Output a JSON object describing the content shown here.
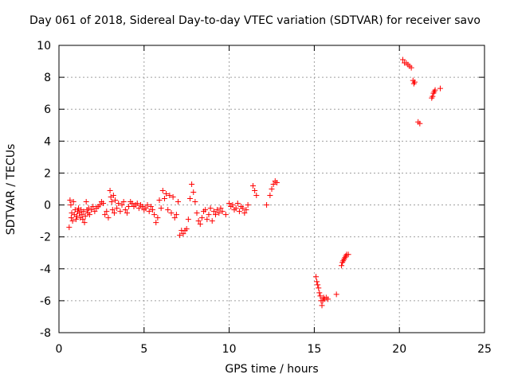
{
  "chart_data": {
    "type": "scatter",
    "title": "Day 061 of 2018, Sidereal Day-to-day VTEC variation (SDTVAR) for receiver savo",
    "xlabel": "GPS time / hours",
    "ylabel": "SDTVAR / TECUs",
    "xlim": [
      0,
      25
    ],
    "ylim": [
      -8,
      10
    ],
    "xticks": [
      0,
      5,
      10,
      15,
      20,
      25
    ],
    "yticks": [
      -8,
      -6,
      -4,
      -2,
      0,
      2,
      4,
      6,
      8,
      10
    ],
    "grid": true,
    "marker": "+",
    "marker_color": "#ff0000",
    "series": [
      {
        "name": "SDTVAR",
        "x": [
          0.6,
          0.65,
          0.7,
          0.72,
          0.75,
          0.8,
          0.85,
          0.9,
          0.95,
          1.0,
          1.05,
          1.1,
          1.15,
          1.2,
          1.25,
          1.3,
          1.35,
          1.4,
          1.45,
          1.5,
          1.55,
          1.6,
          1.65,
          1.7,
          1.75,
          1.8,
          1.9,
          2.0,
          2.1,
          2.2,
          2.3,
          2.4,
          2.5,
          2.6,
          2.7,
          2.8,
          2.9,
          3.0,
          3.05,
          3.1,
          3.15,
          3.2,
          3.25,
          3.3,
          3.4,
          3.5,
          3.6,
          3.7,
          3.8,
          3.9,
          4.0,
          4.1,
          4.2,
          4.3,
          4.4,
          4.5,
          4.6,
          4.7,
          4.8,
          4.9,
          5.0,
          5.1,
          5.2,
          5.3,
          5.4,
          5.5,
          5.6,
          5.7,
          5.8,
          5.9,
          6.0,
          6.1,
          6.2,
          6.3,
          6.4,
          6.5,
          6.6,
          6.7,
          6.8,
          6.9,
          7.0,
          7.1,
          7.2,
          7.3,
          7.4,
          7.5,
          7.6,
          7.7,
          7.8,
          7.9,
          8.0,
          8.1,
          8.2,
          8.3,
          8.4,
          8.5,
          8.6,
          8.7,
          8.8,
          8.9,
          9.0,
          9.1,
          9.2,
          9.3,
          9.4,
          9.5,
          9.6,
          9.8,
          10.0,
          10.1,
          10.2,
          10.3,
          10.4,
          10.5,
          10.6,
          10.7,
          10.8,
          10.9,
          11.0,
          11.1,
          11.4,
          11.5,
          11.6,
          12.2,
          12.4,
          12.5,
          12.6,
          12.7,
          12.8,
          15.1,
          15.15,
          15.2,
          15.25,
          15.3,
          15.35,
          15.4,
          15.45,
          15.5,
          15.55,
          15.6,
          15.7,
          15.8,
          16.3,
          16.6,
          16.65,
          16.7,
          16.75,
          16.8,
          16.85,
          16.9,
          17.0,
          20.2,
          20.3,
          20.4,
          20.5,
          20.6,
          20.7,
          20.8,
          20.85,
          20.9,
          21.1,
          21.2,
          21.9,
          21.95,
          22.0,
          22.05,
          22.1,
          22.4
        ],
        "y": [
          -1.4,
          0.3,
          0.0,
          -0.8,
          -0.5,
          -1.0,
          0.2,
          -0.6,
          -0.3,
          -0.9,
          -0.7,
          -0.4,
          -0.2,
          -0.5,
          -0.8,
          -0.3,
          -0.6,
          -0.9,
          -0.4,
          -1.1,
          -0.7,
          0.2,
          -0.3,
          -0.5,
          -0.2,
          -0.6,
          -0.3,
          -0.1,
          -0.4,
          -0.2,
          -0.1,
          0.0,
          0.2,
          0.1,
          -0.6,
          -0.4,
          -0.8,
          0.9,
          0.5,
          0.2,
          -0.3,
          0.6,
          -0.5,
          0.3,
          -0.2,
          0.1,
          -0.4,
          0.0,
          0.2,
          -0.3,
          -0.5,
          -0.1,
          0.2,
          0.1,
          -0.1,
          0.0,
          0.1,
          -0.2,
          0.0,
          -0.1,
          -0.3,
          -0.2,
          0.0,
          -0.4,
          -0.1,
          -0.3,
          -0.6,
          -1.1,
          -0.8,
          0.3,
          -0.2,
          0.9,
          0.4,
          0.7,
          -0.3,
          0.6,
          -0.5,
          0.5,
          -0.8,
          -0.6,
          0.2,
          -1.9,
          -1.6,
          -1.8,
          -1.6,
          -1.5,
          -0.9,
          0.4,
          1.3,
          0.8,
          0.2,
          -0.5,
          -1.0,
          -1.2,
          -0.8,
          -0.4,
          -0.3,
          -0.9,
          -0.6,
          -0.2,
          -1.0,
          -0.4,
          -0.6,
          -0.3,
          -0.5,
          -0.2,
          -0.4,
          -0.6,
          0.1,
          -0.1,
          0.0,
          -0.3,
          -0.2,
          0.1,
          -0.4,
          -0.1,
          -0.2,
          -0.5,
          -0.3,
          0.0,
          1.2,
          0.9,
          0.6,
          0.0,
          0.6,
          1.0,
          1.3,
          1.5,
          1.4,
          -4.5,
          -4.8,
          -5.0,
          -5.2,
          -5.5,
          -5.7,
          -6.0,
          -6.3,
          -6.0,
          -5.8,
          -5.9,
          -5.8,
          -5.9,
          -5.6,
          -3.8,
          -3.6,
          -3.5,
          -3.4,
          -3.3,
          -3.2,
          -3.1,
          -3.1,
          9.1,
          8.9,
          8.9,
          8.8,
          8.7,
          8.6,
          7.8,
          7.6,
          7.7,
          5.2,
          5.1,
          6.7,
          6.8,
          7.0,
          7.1,
          7.2,
          7.3
        ]
      }
    ]
  }
}
